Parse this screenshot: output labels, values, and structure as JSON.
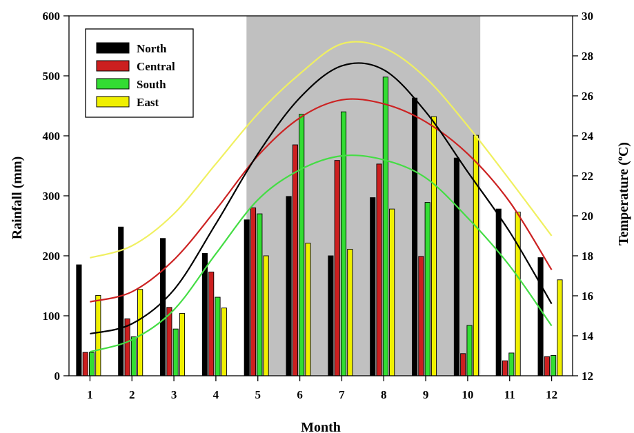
{
  "chart_data": {
    "type": "bar",
    "xlabel": "Month",
    "ylabel": "Rainfall (mm)",
    "y2label": "Temperature (°C)",
    "categories": [
      "1",
      "2",
      "3",
      "4",
      "5",
      "6",
      "7",
      "8",
      "9",
      "10",
      "11",
      "12"
    ],
    "ylim": [
      0,
      600
    ],
    "y2lim": [
      12,
      30
    ],
    "y_ticks": [
      "0",
      "100",
      "200",
      "300",
      "400",
      "500",
      "600"
    ],
    "y2_ticks": [
      "12",
      "14",
      "16",
      "18",
      "20",
      "22",
      "24",
      "26",
      "28",
      "30"
    ],
    "shaded_months": [
      "5",
      "10"
    ],
    "legend_position": "top-left",
    "grid": false,
    "series": [
      {
        "name": "North",
        "color": "#000000",
        "rainfall": [
          185,
          248,
          229,
          204,
          260,
          299,
          200,
          297,
          463,
          363,
          278,
          197
        ],
        "temperature": [
          14.1,
          14.6,
          16.3,
          19.6,
          23.1,
          25.9,
          27.5,
          27.3,
          25.2,
          22.2,
          19.2,
          15.6
        ]
      },
      {
        "name": "Central",
        "color": "#cc1f1f",
        "rainfall": [
          39,
          95,
          114,
          173,
          280,
          385,
          359,
          353,
          199,
          37,
          25,
          32
        ],
        "temperature": [
          15.7,
          16.2,
          17.8,
          20.3,
          23.0,
          24.9,
          25.8,
          25.6,
          24.7,
          23.1,
          20.7,
          17.3
        ]
      },
      {
        "name": "South",
        "color": "#33dd33",
        "rainfall": [
          39,
          65,
          78,
          131,
          270,
          436,
          440,
          498,
          289,
          84,
          38,
          34
        ],
        "temperature": [
          13.2,
          13.8,
          15.3,
          18.1,
          20.8,
          22.3,
          23.0,
          22.8,
          21.9,
          19.9,
          17.5,
          14.5
        ]
      },
      {
        "name": "East",
        "color": "#f0f000",
        "rainfall": [
          134,
          144,
          104,
          113,
          200,
          221,
          211,
          278,
          432,
          401,
          273,
          160
        ],
        "temperature": [
          17.9,
          18.5,
          20.1,
          22.6,
          25.1,
          27.1,
          28.6,
          28.4,
          26.9,
          24.5,
          21.8,
          19.0
        ]
      }
    ]
  }
}
